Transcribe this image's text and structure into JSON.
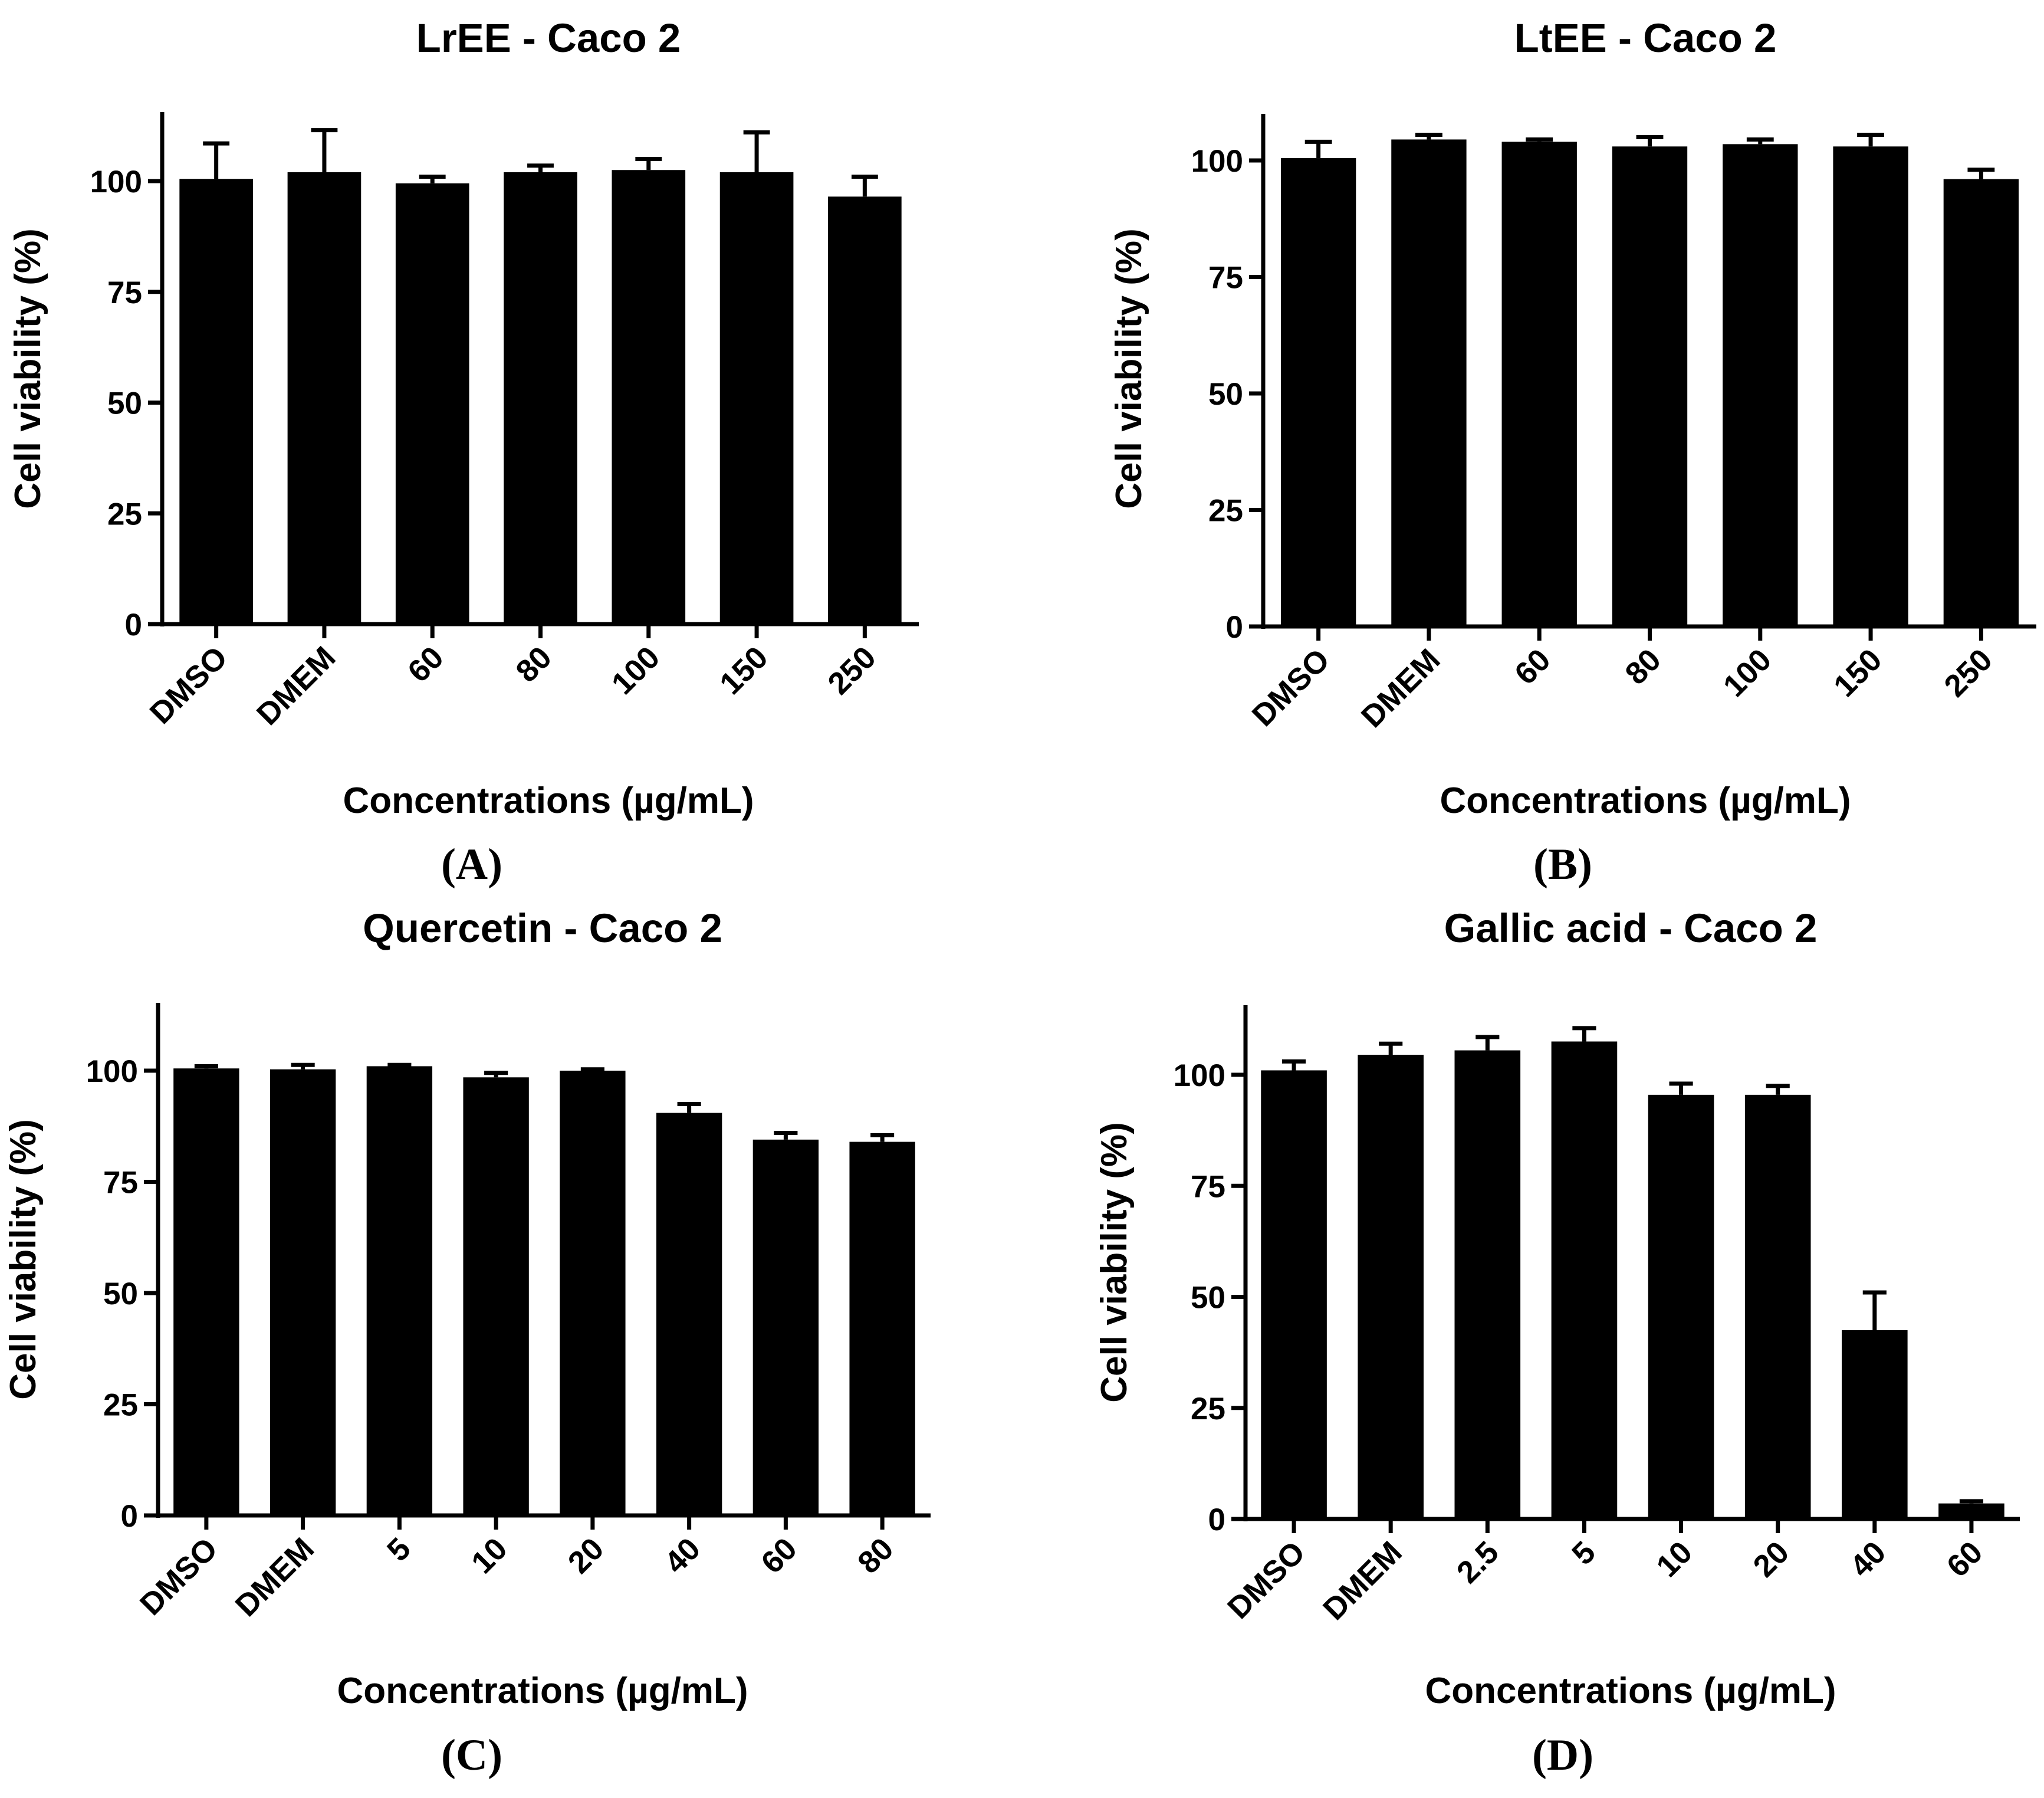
{
  "chart_data": [
    {
      "type": "bar",
      "title": "LrEE - Caco 2",
      "panel_label": "(A)",
      "xlabel": "Concentrations (µg/mL)",
      "ylabel": "Cell viability (%)",
      "ylim": [
        0,
        115
      ],
      "yticks": [
        "0",
        "25",
        "50",
        "75",
        "100"
      ],
      "categories": [
        "DMSO",
        "DMEM",
        "60",
        "80",
        "100",
        "150",
        "250"
      ],
      "values": [
        100.5,
        102,
        99.5,
        102,
        102.5,
        102,
        96.5
      ],
      "errors": [
        8,
        9.5,
        1.5,
        1.5,
        2.5,
        9,
        4.5
      ]
    },
    {
      "type": "bar",
      "title": "LtEE - Caco 2",
      "panel_label": "(B)",
      "xlabel": "Concentrations (µg/mL)",
      "ylabel": "Cell viability (%)",
      "ylim": [
        0,
        110
      ],
      "yticks": [
        "0",
        "25",
        "50",
        "75",
        "100"
      ],
      "categories": [
        "DMSO",
        "DMEM",
        "60",
        "80",
        "100",
        "150",
        "250"
      ],
      "values": [
        100.5,
        104.5,
        104,
        103,
        103.5,
        103,
        96
      ],
      "errors": [
        3.5,
        1,
        0.5,
        2,
        1,
        2.5,
        2
      ]
    },
    {
      "type": "bar",
      "title": "Quercetin - Caco 2",
      "panel_label": "(C)",
      "xlabel": "Concentrations (µg/mL)",
      "ylabel": "Cell viability (%)",
      "ylim": [
        0,
        115
      ],
      "yticks": [
        "0",
        "25",
        "50",
        "75",
        "100"
      ],
      "categories": [
        "DMSO",
        "DMEM",
        "5",
        "10",
        "20",
        "40",
        "60",
        "80"
      ],
      "values": [
        100.5,
        100.3,
        101,
        98.5,
        100,
        90.5,
        84.5,
        84
      ],
      "errors": [
        0.5,
        1,
        0.3,
        1,
        0.3,
        2,
        1.5,
        1.5
      ]
    },
    {
      "type": "bar",
      "title": "Gallic acid - Caco 2",
      "panel_label": "(D)",
      "xlabel": "Concentrations (µg/mL)",
      "ylabel": "Cell viability (%)",
      "ylim": [
        0,
        115
      ],
      "yticks": [
        "0",
        "25",
        "50",
        "75",
        "100"
      ],
      "categories": [
        "DMSO",
        "DMEM",
        "2.5",
        "5",
        "10",
        "20",
        "40",
        "60"
      ],
      "values": [
        101,
        104.5,
        105.5,
        107.5,
        95.5,
        95.5,
        42.5,
        3.5
      ],
      "errors": [
        2,
        2.5,
        3,
        3,
        2.5,
        2,
        8.5,
        0.5
      ]
    }
  ]
}
